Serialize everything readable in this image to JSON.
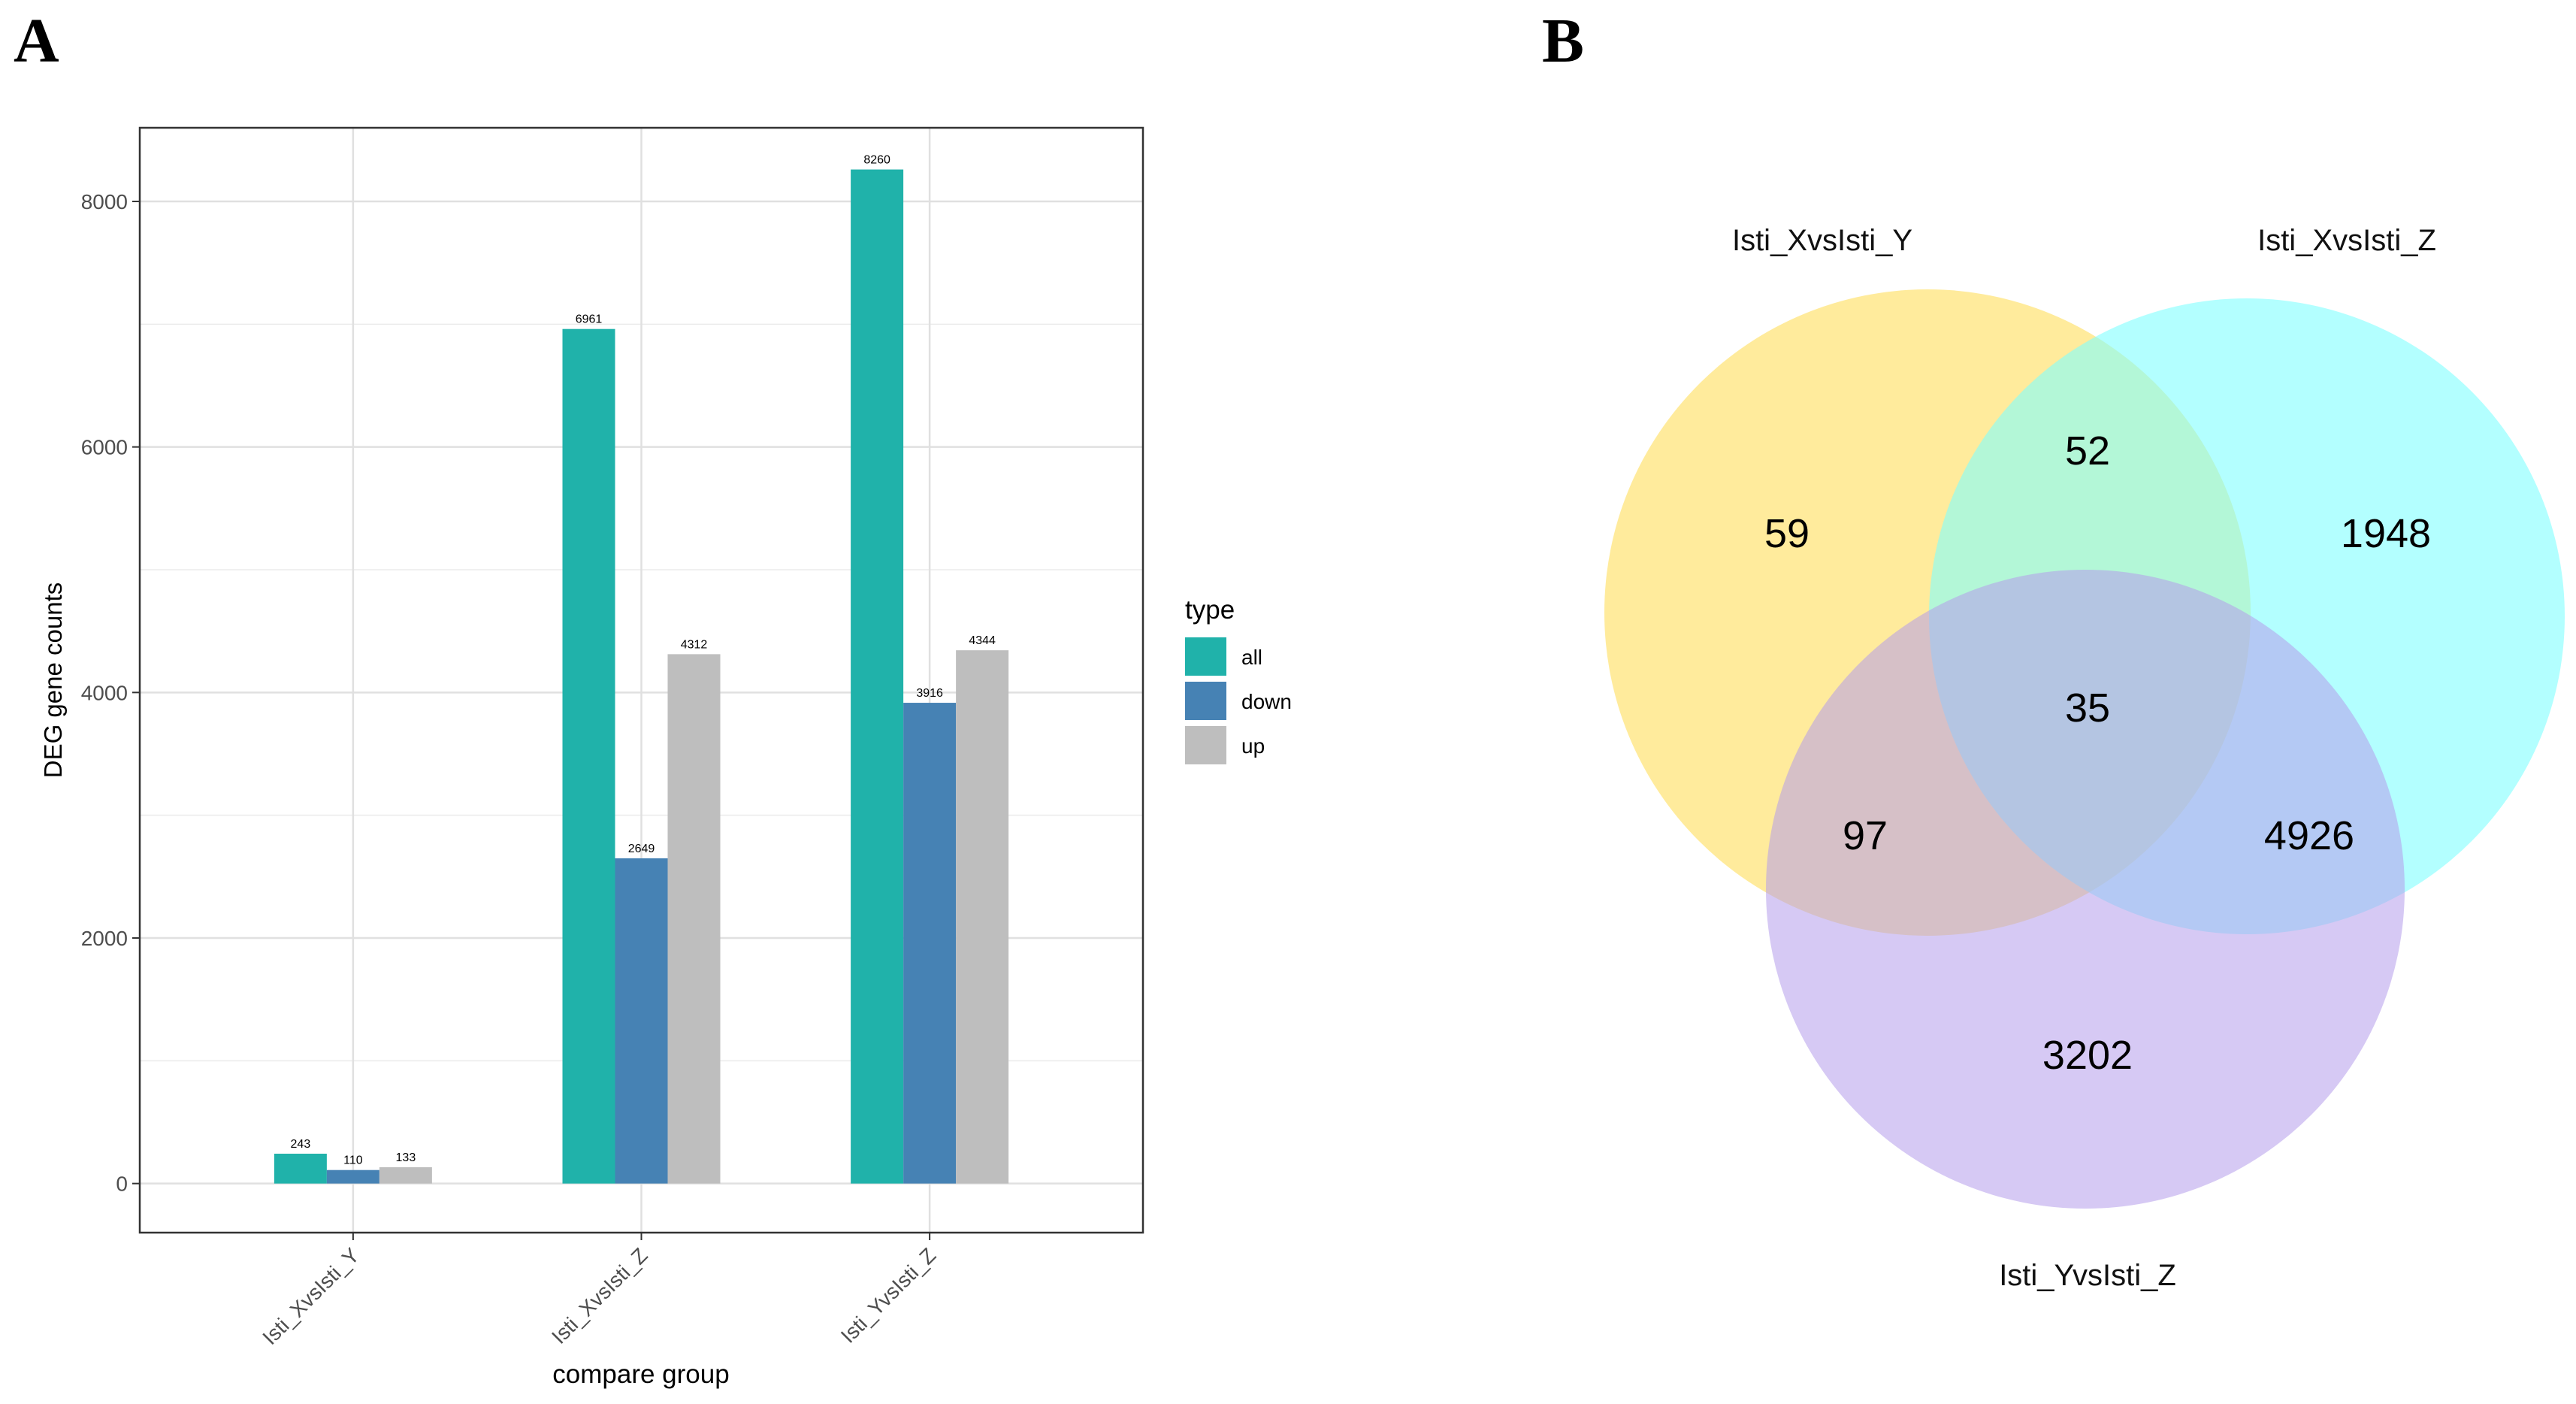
{
  "panels": {
    "a": {
      "letter": "A"
    },
    "b": {
      "letter": "B"
    }
  },
  "chart_data": [
    {
      "type": "bar",
      "title": "",
      "xlabel": "compare group",
      "ylabel": "DEG gene counts",
      "ylim": [
        -400,
        8600
      ],
      "yticks": [
        0,
        2000,
        4000,
        6000,
        8000
      ],
      "grid": true,
      "categories": [
        "Isti_XvsIsti_Y",
        "Isti_XvsIsti_Z",
        "Isti_YvsIsti_Z"
      ],
      "series": [
        {
          "name": "all",
          "color": "#20B2AA",
          "values": [
            243,
            6961,
            8260
          ]
        },
        {
          "name": "down",
          "color": "#4682B4",
          "values": [
            110,
            2649,
            3916
          ]
        },
        {
          "name": "up",
          "color": "#BEBEBE",
          "values": [
            133,
            4312,
            4344
          ]
        }
      ],
      "legend": {
        "title": "type",
        "position": "right"
      }
    },
    {
      "type": "venn",
      "sets": [
        {
          "name": "Isti_XvsIsti_Y",
          "color": "#FFE680"
        },
        {
          "name": "Isti_XvsIsti_Z",
          "color": "#80FFFF"
        },
        {
          "name": "Isti_YvsIsti_Z",
          "color": "#C8B4EC"
        }
      ],
      "regions": [
        {
          "id": "y_only",
          "label": "59"
        },
        {
          "id": "y_xz",
          "label": "52"
        },
        {
          "id": "xz_only",
          "label": "1948"
        },
        {
          "id": "all_three",
          "label": "35"
        },
        {
          "id": "y_yz",
          "label": "97"
        },
        {
          "id": "xz_yz",
          "label": "4926"
        },
        {
          "id": "yz_only",
          "label": "3202"
        }
      ]
    }
  ]
}
